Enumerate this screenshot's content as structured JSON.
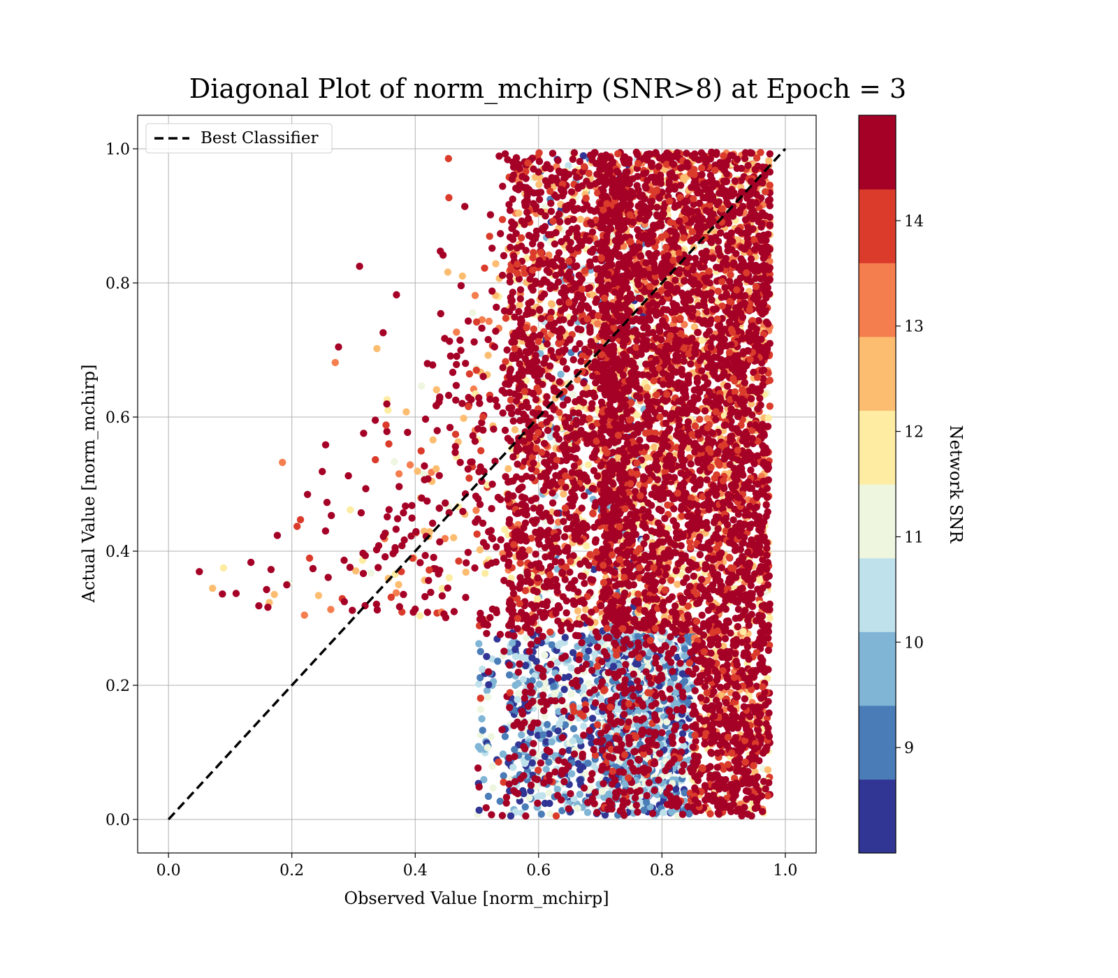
{
  "chart_data": {
    "type": "scatter",
    "title": "Diagonal Plot of norm_mchirp (SNR>8) at Epoch = 3",
    "xlabel": "Observed Value [norm_mchirp]",
    "ylabel": "Actual Value [norm_mchirp]",
    "xlim": [
      -0.05,
      1.05
    ],
    "ylim": [
      -0.05,
      1.05
    ],
    "xticks": [
      "0.0",
      "0.2",
      "0.4",
      "0.6",
      "0.8",
      "1.0"
    ],
    "yticks": [
      "0.0",
      "0.2",
      "0.4",
      "0.6",
      "0.8",
      "1.0"
    ],
    "grid": true,
    "legend": {
      "placement": "top-left",
      "entries": [
        {
          "label": "Best Classifier",
          "style": "dashed",
          "color": "#000000"
        }
      ]
    },
    "reference_line": {
      "name": "Best Classifier",
      "x": [
        0.0,
        1.0
      ],
      "y": [
        0.0,
        1.0
      ]
    },
    "colorbar": {
      "label": "Network SNR",
      "range": [
        8,
        15
      ],
      "ticks": [
        "9",
        "10",
        "11",
        "12",
        "13",
        "14"
      ],
      "tick_values": [
        9,
        10,
        11,
        12,
        13,
        14
      ],
      "colors": [
        "#313695",
        "#4575b4",
        "#74add1",
        "#abd9e9",
        "#e0f3f8",
        "#ffffbf",
        "#fee090",
        "#fdae61",
        "#f46d43",
        "#d73027",
        "#a50026"
      ],
      "band_colors": [
        "#313695",
        "#4a7cb8",
        "#80b5d6",
        "#bfe1ec",
        "#eef6e0",
        "#fdeca2",
        "#fdbd71",
        "#f57e4f",
        "#da3b2b",
        "#a50026"
      ]
    },
    "points": {
      "count": 9000,
      "x_range": [
        0.05,
        0.975
      ],
      "y_range": [
        0.0,
        1.0
      ],
      "dominant_region": "dense block for x 0.7–0.975 across y 0.0–1.0, mostly SNR ≥ 14 (dark red)",
      "low_snr_region": "blue/light-blue cluster around x 0.5–0.85, y 0.0–0.3"
    }
  }
}
